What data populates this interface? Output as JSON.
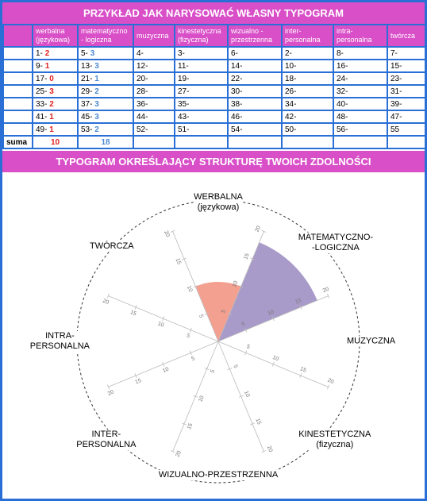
{
  "header": {
    "title": "PRZYKŁAD JAK NARYSOWAĆ WŁASNY TYPOGRAM"
  },
  "table": {
    "header": [
      "werbalna (językowa)",
      "matematyczno - logiczna",
      "muzyczna",
      "kinestetyczna (fizyczna)",
      "wizualno - przestrzenna",
      "inter-personalna",
      "intra-personalna",
      "twórcza"
    ],
    "rows": [
      [
        {
          "text": "1-",
          "score": 2
        },
        {
          "text": "5-",
          "score": 3
        },
        "4-",
        "3-",
        "6-",
        "2-",
        "8-",
        "7-"
      ],
      [
        {
          "text": "9-",
          "score": 1
        },
        {
          "text": "13-",
          "score": 3
        },
        "12-",
        "11-",
        "14-",
        "10-",
        "16-",
        "15-"
      ],
      [
        {
          "text": "17-",
          "score": 0
        },
        {
          "text": "21-",
          "score": 1
        },
        "20-",
        "19-",
        "22-",
        "18-",
        "24-",
        "23-"
      ],
      [
        {
          "text": "25-",
          "score": 3
        },
        {
          "text": "29-",
          "score": 2
        },
        "28-",
        "27-",
        "30-",
        "26-",
        "32-",
        "31-"
      ],
      [
        {
          "text": "33-",
          "score": 2
        },
        {
          "text": "37-",
          "score": 3
        },
        "36-",
        "35-",
        "38-",
        "34-",
        "40-",
        "39-"
      ],
      [
        {
          "text": "41-",
          "score": 1
        },
        {
          "text": "45-",
          "score": 3
        },
        "44-",
        "43-",
        "46-",
        "42-",
        "48-",
        "47-"
      ],
      [
        {
          "text": "49-",
          "score": 1
        },
        {
          "text": "53-",
          "score": 2
        },
        "52-",
        "51-",
        "54-",
        "50-",
        "56-",
        "55"
      ]
    ],
    "sum_label": "suma",
    "sums": [
      10,
      18
    ]
  },
  "chart_data": {
    "type": "polar_area",
    "title": "TYPOGRAM OKREŚLAJĄCY STRUKTURĘ TWOICH ZDOLNOŚCI",
    "categories": [
      "WERBALNA\n(językowa)",
      "MATEMATYCZNO-\n-LOGICZNA",
      "MUZYCZNA",
      "KINESTETYCZNA\n(fizyczna)",
      "WIZUALNO-PRZESTRZENNA",
      "INTER-\nPERSONALNA",
      "INTRA-\nPERSONALNA",
      "TWÓRCZA"
    ],
    "values": [
      10,
      18,
      0,
      0,
      0,
      0,
      0,
      0
    ],
    "colors": [
      "#f4a090",
      "#a99bc9"
    ],
    "ylim": [
      0,
      20
    ],
    "yticks": [
      5,
      10,
      15,
      20
    ]
  }
}
